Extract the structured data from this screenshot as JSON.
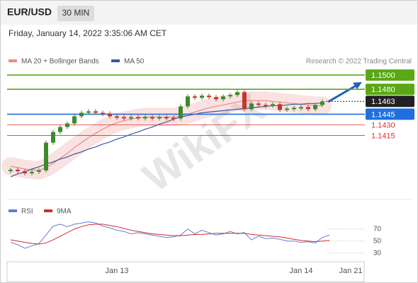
{
  "header": {
    "symbol": "EUR/USD",
    "interval": "30 MIN",
    "date": "Friday, January 14, 2022 3:35:06 AM CET"
  },
  "watermark": "WikiFX",
  "chart_data": [
    {
      "type": "candlestick",
      "source": "Research © 2022 Trading Central",
      "ylim": [
        1.1347,
        1.1511
      ],
      "up_color": "#3d8a2a",
      "down_color": "#c0392b",
      "values": [
        1.1367,
        1.1365,
        1.1362,
        1.1364,
        1.1366,
        1.1405,
        1.142,
        1.1427,
        1.1432,
        1.1442,
        1.1447,
        1.1449,
        1.1447,
        1.1446,
        1.1442,
        1.1441,
        1.144,
        1.1441,
        1.144,
        1.1441,
        1.144,
        1.1441,
        1.144,
        1.1439,
        1.1456,
        1.147,
        1.1468,
        1.1471,
        1.1469,
        1.1466,
        1.147,
        1.1472,
        1.1476,
        1.1452,
        1.146,
        1.1458,
        1.1457,
        1.1459,
        1.1451,
        1.1453,
        1.1454,
        1.1455,
        1.1452,
        1.1458,
        1.1463,
        null,
        null,
        null,
        null,
        null
      ],
      "series": [
        {
          "name": "MA 20 + Bollinger Bands",
          "color": "#ea8a8a",
          "band": true,
          "values": [
            1.1372,
            1.137,
            1.1368,
            1.1367,
            1.1366,
            1.137,
            1.1376,
            1.1383,
            1.139,
            1.1398,
            1.1405,
            1.1412,
            1.1418,
            1.1424,
            1.1429,
            1.1433,
            1.1436,
            1.1438,
            1.144,
            1.1441,
            1.1441,
            1.1441,
            1.1441,
            1.1441,
            1.1442,
            1.1445,
            1.1448,
            1.1451,
            1.1454,
            1.1456,
            1.1458,
            1.146,
            1.1462,
            1.1464,
            1.1464,
            1.1464,
            1.1464,
            1.1463,
            1.1462,
            1.1461,
            1.146,
            1.1459,
            1.1458,
            1.1457,
            1.1457,
            null,
            null,
            null,
            null,
            null
          ]
        },
        {
          "name": "MA 50",
          "color": "#3a5a9a",
          "band": false,
          "values": [
            1.1357,
            1.1361,
            1.1364,
            1.1368,
            1.1371,
            1.1375,
            1.1378,
            1.1382,
            1.1385,
            1.1389,
            1.1392,
            1.1396,
            1.1399,
            1.1403,
            1.1406,
            1.141,
            1.1413,
            1.1417,
            1.142,
            1.1424,
            1.1427,
            1.1431,
            1.1434,
            1.1438,
            1.1441,
            1.1443,
            1.1445,
            1.1447,
            1.1448,
            1.1449,
            1.145,
            1.1451,
            1.1452,
            1.1453,
            1.1454,
            1.1455,
            1.1456,
            1.1457,
            1.1457,
            1.1458,
            1.1459,
            1.1459,
            1.146,
            1.146,
            1.1461,
            null,
            null,
            null,
            null,
            null
          ]
        }
      ],
      "levels": [
        {
          "value": 1.15,
          "label": "1.1500",
          "color": "#5aa814",
          "box": true,
          "line": true
        },
        {
          "value": 1.148,
          "label": "1.1480",
          "color": "#5aa814",
          "box": true,
          "line": true
        },
        {
          "value": 1.1463,
          "label": "1.1463",
          "color": "#222222",
          "box": true,
          "line": false
        },
        {
          "value": 1.1445,
          "label": "1.1445",
          "color": "#1f6fe0",
          "box": true,
          "line": true
        },
        {
          "value": 1.143,
          "label": "1.1430",
          "color": "#e03030",
          "box": false,
          "line": true
        },
        {
          "value": 1.1415,
          "label": "1.1415",
          "color": "#e03030",
          "box": false,
          "line": true
        }
      ]
    },
    {
      "type": "line",
      "categories": [
        null,
        null,
        null,
        null,
        null,
        null,
        null,
        null,
        null,
        null,
        null,
        null,
        null,
        null,
        null,
        "Jan 13",
        null,
        null,
        null,
        null,
        null,
        null,
        null,
        null,
        null,
        null,
        null,
        null,
        null,
        null,
        null,
        null,
        null,
        null,
        null,
        null,
        null,
        null,
        null,
        null,
        null,
        "Jan 14",
        null,
        null,
        null,
        null,
        null,
        null,
        "Jan 21",
        null
      ],
      "ylim": [
        18,
        92
      ],
      "yticks": [
        30,
        50,
        70
      ],
      "series": [
        {
          "name": "RSI",
          "color": "#5b7fd6",
          "values": [
            48,
            44,
            38,
            42,
            46,
            60,
            75,
            78,
            74,
            78,
            80,
            82,
            80,
            75,
            72,
            68,
            66,
            62,
            64,
            62,
            60,
            58,
            56,
            57,
            60,
            70,
            62,
            68,
            64,
            60,
            62,
            66,
            62,
            64,
            52,
            58,
            54,
            55,
            53,
            50,
            50,
            48,
            49,
            47,
            56,
            60,
            null,
            null,
            null,
            null
          ]
        },
        {
          "name": "9MA",
          "color": "#d42a2a",
          "values": [
            52,
            50,
            48,
            46,
            45,
            47,
            52,
            58,
            64,
            70,
            74,
            77,
            78,
            78,
            76,
            74,
            71,
            68,
            66,
            64,
            62,
            61,
            60,
            59,
            59,
            60,
            61,
            61,
            62,
            63,
            63,
            63,
            63,
            63,
            61,
            60,
            59,
            58,
            57,
            55,
            53,
            51,
            50,
            49,
            50,
            51,
            null,
            null,
            null,
            null
          ]
        }
      ]
    }
  ]
}
